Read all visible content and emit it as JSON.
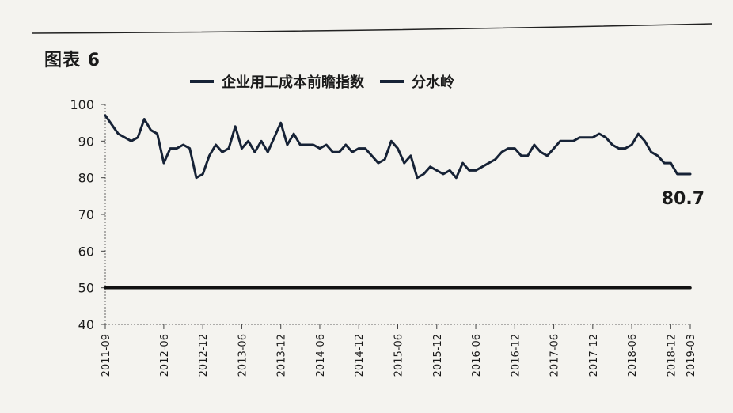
{
  "figure_label": "图表 6",
  "chart_data": {
    "type": "line",
    "title": "",
    "xlabel": "",
    "ylabel": "",
    "ylim": [
      40,
      100
    ],
    "y_ticks": [
      40,
      50,
      60,
      70,
      80,
      90,
      100
    ],
    "x_tick_labels": [
      "2011-09",
      "2012-06",
      "2012-12",
      "2013-06",
      "2013-12",
      "2014-06",
      "2014-12",
      "2015-06",
      "2015-12",
      "2016-06",
      "2016-12",
      "2017-06",
      "2017-12",
      "2018-06",
      "2018-12",
      "2019-03"
    ],
    "x_tick_months": [
      0,
      9,
      15,
      21,
      27,
      33,
      39,
      45,
      51,
      57,
      63,
      69,
      75,
      81,
      87,
      90
    ],
    "legend_position": "top",
    "grid": false,
    "series": [
      {
        "name": "企业用工成本前瞻指数",
        "color": "#162236",
        "x": [
          0,
          2,
          4,
          5,
          6,
          7,
          8,
          9,
          10,
          11,
          12,
          13,
          14,
          15,
          16,
          17,
          18,
          19,
          20,
          21,
          22,
          23,
          24,
          25,
          26,
          27,
          28,
          29,
          30,
          31,
          32,
          33,
          34,
          35,
          36,
          37,
          38,
          39,
          40,
          41,
          42,
          43,
          44,
          45,
          46,
          47,
          48,
          49,
          50,
          51,
          52,
          53,
          54,
          55,
          56,
          57,
          58,
          59,
          60,
          61,
          62,
          63,
          64,
          65,
          66,
          67,
          68,
          69,
          70,
          71,
          72,
          73,
          74,
          75,
          76,
          77,
          78,
          79,
          80,
          81,
          82,
          83,
          84,
          85,
          86,
          87,
          88,
          89,
          90
        ],
        "values": [
          97,
          92,
          90,
          91,
          96,
          93,
          92,
          84,
          88,
          88,
          89,
          88,
          80,
          81,
          86,
          89,
          87,
          88,
          94,
          88,
          90,
          87,
          90,
          87,
          91,
          95,
          89,
          92,
          89,
          89,
          89,
          88,
          89,
          87,
          87,
          89,
          87,
          88,
          88,
          86,
          84,
          85,
          90,
          88,
          84,
          86,
          80,
          81,
          83,
          82,
          81,
          82,
          80,
          84,
          82,
          82,
          83,
          84,
          85,
          87,
          88,
          88,
          86,
          86,
          89,
          87,
          86,
          88,
          90,
          90,
          90,
          91,
          91,
          91,
          92,
          91,
          89,
          88,
          88,
          89,
          92,
          90,
          87,
          86,
          84,
          84,
          81,
          81,
          81
        ]
      },
      {
        "name": "分水岭",
        "color": "#111111",
        "x": [
          0,
          90
        ],
        "values": [
          50,
          50
        ]
      }
    ],
    "annotations": [
      {
        "text": "80.7"
      }
    ]
  }
}
